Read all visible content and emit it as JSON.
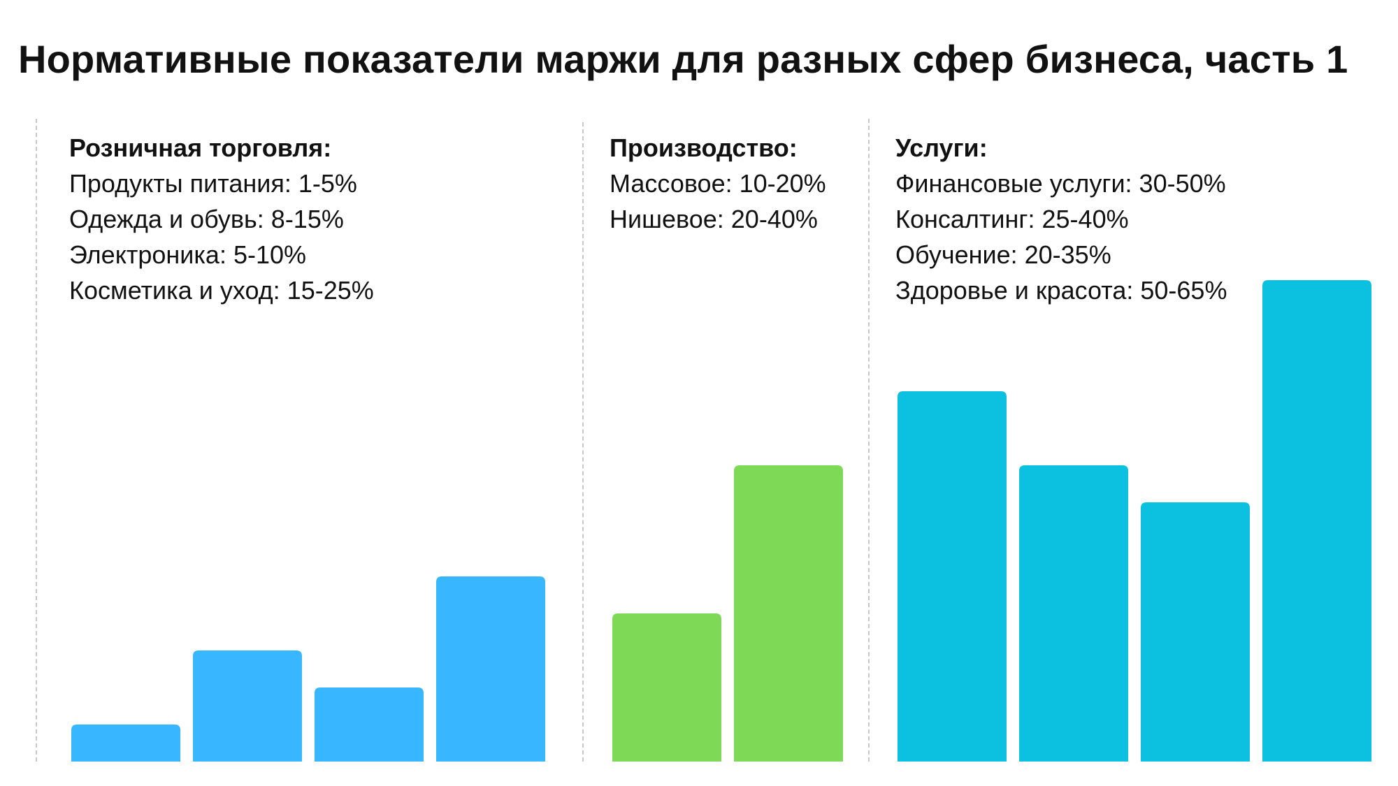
{
  "chart_data": {
    "type": "bar",
    "title": "Нормативные показатели маржи для разных сфер бизнеса, часть 1",
    "unit": "%",
    "groups": [
      {
        "name": "Розничная торговля:",
        "color": "#38B6FF",
        "items": [
          {
            "label": "Продукты питания: 1-5%",
            "value": 5
          },
          {
            "label": "Одежда и обувь: 8-15%",
            "value": 15
          },
          {
            "label": "Электроника: 5-10%",
            "value": 10
          },
          {
            "label": "Косметика и уход: 15-25%",
            "value": 25
          }
        ]
      },
      {
        "name": "Производство:",
        "color": "#7ED957",
        "items": [
          {
            "label": "Массовое: 10-20%",
            "value": 20
          },
          {
            "label": "Нишевое: 20-40%",
            "value": 40
          }
        ]
      },
      {
        "name": "Услуги:",
        "color": "#0CC0DF",
        "items": [
          {
            "label": "Финансовые услуги: 30-50%",
            "value": 50
          },
          {
            "label": "Консалтинг: 25-40%",
            "value": 40
          },
          {
            "label": "Обучение: 20-35%",
            "value": 35
          },
          {
            "label": "Здоровье и красота: 50-65%",
            "value": 65
          }
        ]
      }
    ],
    "ylim": [
      0,
      65
    ],
    "grid": false,
    "legend": "none"
  }
}
